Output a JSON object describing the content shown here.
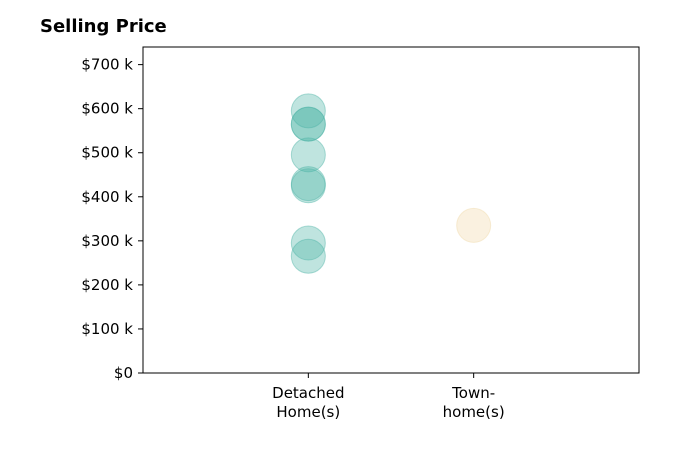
{
  "chart_data": {
    "type": "scatter",
    "title": "Selling Price",
    "xlabel": "",
    "ylabel": "",
    "categories": [
      {
        "lines": [
          "Detached",
          "Home(s)"
        ]
      },
      {
        "lines": [
          "Town-",
          "home(s)"
        ]
      }
    ],
    "y_ticks": [
      {
        "value": 0,
        "label": "$0"
      },
      {
        "value": 100,
        "label": "$100 k"
      },
      {
        "value": 200,
        "label": "$200 k"
      },
      {
        "value": 300,
        "label": "$300 k"
      },
      {
        "value": 400,
        "label": "$400 k"
      },
      {
        "value": 500,
        "label": "$500 k"
      },
      {
        "value": 600,
        "label": "$600 k"
      },
      {
        "value": 700,
        "label": "$700 k"
      }
    ],
    "ylim": [
      0,
      740
    ],
    "x_range": [
      -1,
      2
    ],
    "grid": false,
    "series": [
      {
        "category_index": 0,
        "color": "#4db3a6",
        "values": [
          595,
          565,
          565,
          495,
          430,
          425,
          295,
          265
        ]
      },
      {
        "category_index": 1,
        "color": "#f0d9a8",
        "values": [
          335
        ]
      }
    ]
  }
}
